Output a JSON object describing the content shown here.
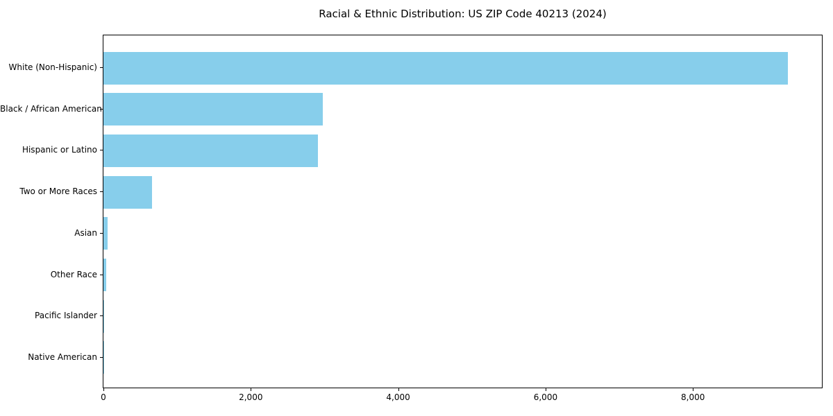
{
  "chart_data": {
    "type": "bar",
    "orientation": "horizontal",
    "title": "Racial & Ethnic Distribution: US ZIP Code 40213 (2024)",
    "categories": [
      "White (Non-Hispanic)",
      "Black / African American",
      "Hispanic or Latino",
      "Two or More Races",
      "Asian",
      "Other Race",
      "Pacific Islander",
      "Native American"
    ],
    "values": [
      9290,
      2975,
      2910,
      660,
      60,
      40,
      10,
      2
    ],
    "xlabel": "",
    "ylabel": "",
    "xlim": [
      0,
      9750
    ],
    "x_ticks": [
      0,
      2000,
      4000,
      6000,
      8000
    ],
    "x_tick_labels": [
      "0",
      "2,000",
      "4,000",
      "6,000",
      "8,000"
    ],
    "bar_color": "#87CEEB",
    "text_color": "#000000",
    "grid": false,
    "legend": null
  }
}
